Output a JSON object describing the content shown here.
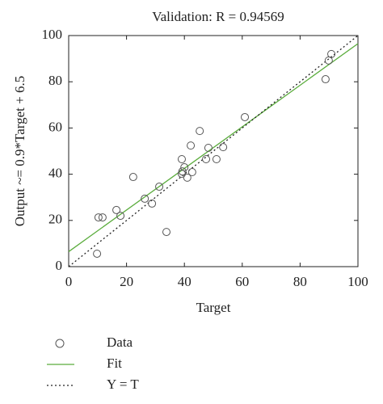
{
  "chart_data": {
    "type": "scatter",
    "title": "Validation: R = 0.94569",
    "x_label": "Target",
    "y_label": "Output ~= 0.9*Target + 6.5",
    "xlim": [
      0,
      100
    ],
    "ylim": [
      0,
      100
    ],
    "xticks": [
      0,
      20,
      40,
      60,
      80,
      100
    ],
    "yticks": [
      0,
      20,
      40,
      60,
      80,
      100
    ],
    "grid": false,
    "legend": "bottom-left",
    "series": [
      {
        "name": "Data",
        "color": "#555555",
        "style": "circle",
        "x": [
          9.8,
          10.3,
          11.7,
          16.5,
          17.9,
          22.3,
          26.3,
          28.8,
          31.3,
          33.8,
          39.1,
          39.3,
          39.1,
          40,
          41,
          42.2,
          42.7,
          45.3,
          47.5,
          48.3,
          51.1,
          53.4,
          60.9,
          88.8,
          89.9,
          90.8
        ],
        "values": [
          5.6,
          21.3,
          21.3,
          24.5,
          22,
          38.8,
          29.4,
          27.3,
          34.6,
          15,
          40.2,
          41.2,
          46.5,
          43,
          38.5,
          52.4,
          40.9,
          58.7,
          46.5,
          51.4,
          46.5,
          51.7,
          64.7,
          81.1,
          89.2,
          92
        ]
      },
      {
        "name": "Fit",
        "color": "#5aac3c",
        "style": "solid",
        "x": [
          0,
          100
        ],
        "values": [
          6.5,
          96.5
        ]
      },
      {
        "name": "Y = T",
        "color": "#222222",
        "style": "dotted",
        "x": [
          0,
          100
        ],
        "values": [
          0,
          100
        ]
      }
    ]
  }
}
